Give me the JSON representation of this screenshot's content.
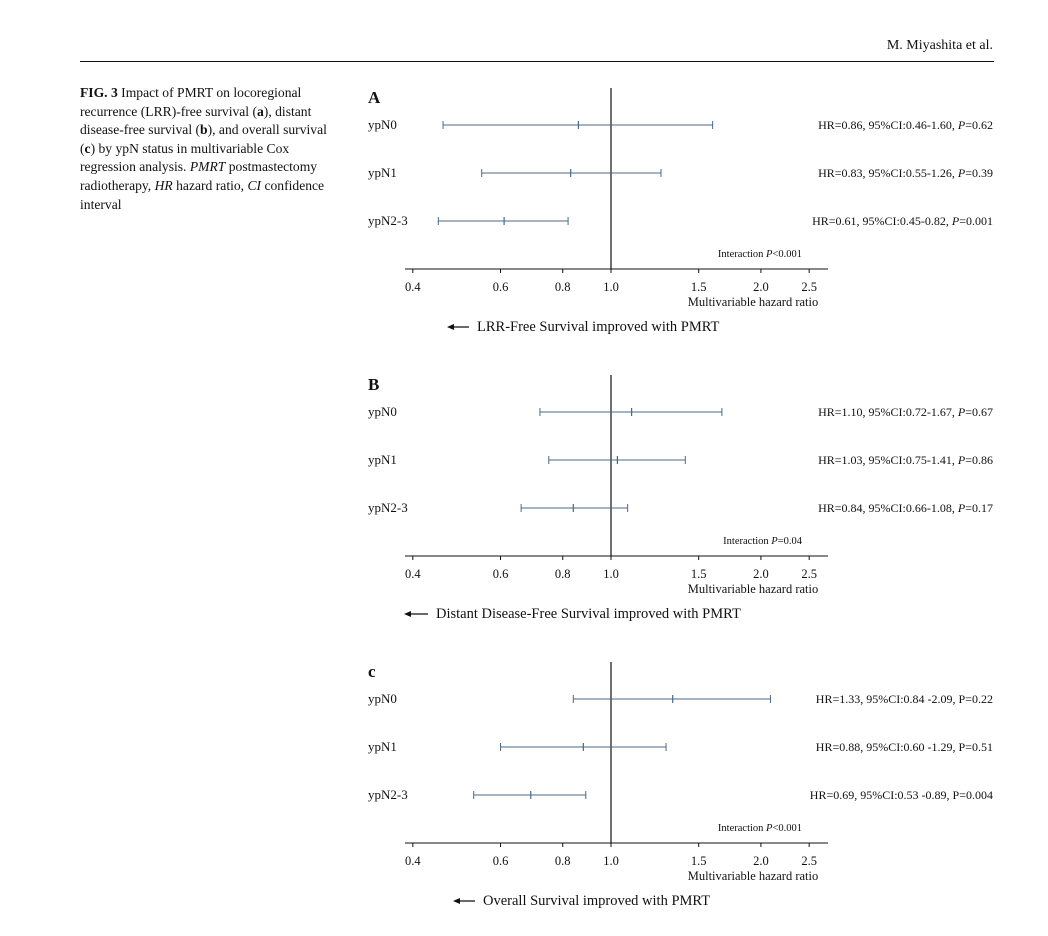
{
  "header": {
    "author": "M. Miyashita et al."
  },
  "caption": {
    "fig_label": "FIG. 3",
    "parts": [
      {
        "t": "Impact of PMRT on locoregional recurrence (LRR)-free survival ("
      },
      {
        "t": "a",
        "b": true
      },
      {
        "t": "), distant disease-free survival ("
      },
      {
        "t": "b",
        "b": true
      },
      {
        "t": "), and overall survival ("
      },
      {
        "t": "c",
        "b": true
      },
      {
        "t": ") by ypN status in multivariable Cox regression analysis. "
      },
      {
        "t": "PMRT",
        "i": true
      },
      {
        "t": " postmastectomy radiotherapy, "
      },
      {
        "t": "HR",
        "i": true
      },
      {
        "t": " hazard ratio, "
      },
      {
        "t": "CI",
        "i": true
      },
      {
        "t": " confidence interval"
      }
    ]
  },
  "chart_data": [
    {
      "type": "forest",
      "panel_label": "A",
      "x_scale": "log",
      "reference_line": 1.0,
      "xticks": [
        0.4,
        0.6,
        0.8,
        1.0,
        1.5,
        2.0,
        2.5
      ],
      "xtick_labels": [
        "0.4",
        "0.6",
        "0.8",
        "1.0",
        "1.5",
        "2.0",
        "2.5"
      ],
      "xlabel": "Multivariable hazard ratio",
      "rows": [
        {
          "label": "ypN0",
          "hr": 0.86,
          "lo": 0.46,
          "hi": 1.6,
          "stat": [
            {
              "t": "HR=0.86,  95%CI:0.46-1.60, "
            },
            {
              "t": "P",
              "i": true
            },
            {
              "t": "=0.62"
            }
          ]
        },
        {
          "label": "ypN1",
          "hr": 0.83,
          "lo": 0.55,
          "hi": 1.26,
          "stat": [
            {
              "t": "HR=0.83, 95%CI:0.55-1.26, "
            },
            {
              "t": "P",
              "i": true
            },
            {
              "t": "=0.39"
            }
          ]
        },
        {
          "label": "ypN2-3",
          "hr": 0.61,
          "lo": 0.45,
          "hi": 0.82,
          "stat": [
            {
              "t": "HR=0.61,  95%CI:0.45-0.82, "
            },
            {
              "t": "P",
              "i": true
            },
            {
              "t": "=0.001"
            }
          ]
        }
      ],
      "interaction": [
        {
          "t": "Interaction "
        },
        {
          "t": "P",
          "i": true
        },
        {
          "t": "<0.001"
        }
      ],
      "footer": "LRR-Free Survival improved with PMRT"
    },
    {
      "type": "forest",
      "panel_label": "B",
      "x_scale": "log",
      "reference_line": 1.0,
      "xticks": [
        0.4,
        0.6,
        0.8,
        1.0,
        1.5,
        2.0,
        2.5
      ],
      "xtick_labels": [
        "0.4",
        "0.6",
        "0.8",
        "1.0",
        "1.5",
        "2.0",
        "2.5"
      ],
      "xlabel": "Multivariable hazard ratio",
      "rows": [
        {
          "label": "ypN0",
          "hr": 1.1,
          "lo": 0.72,
          "hi": 1.67,
          "stat": [
            {
              "t": "HR=1.10,  95%CI:0.72-1.67, "
            },
            {
              "t": "P",
              "i": true
            },
            {
              "t": "=0.67"
            }
          ]
        },
        {
          "label": "ypN1",
          "hr": 1.03,
          "lo": 0.75,
          "hi": 1.41,
          "stat": [
            {
              "t": "HR=1.03, 95%CI:0.75-1.41, "
            },
            {
              "t": "P",
              "i": true
            },
            {
              "t": "=0.86"
            }
          ]
        },
        {
          "label": "ypN2-3",
          "hr": 0.84,
          "lo": 0.66,
          "hi": 1.08,
          "stat": [
            {
              "t": "HR=0.84, 95%CI:0.66-1.08, "
            },
            {
              "t": "P",
              "i": true
            },
            {
              "t": "=0.17"
            }
          ]
        }
      ],
      "interaction": [
        {
          "t": "Interaction "
        },
        {
          "t": "P",
          "i": true
        },
        {
          "t": "=0.04"
        }
      ],
      "footer": "Distant Disease-Free Survival improved with PMRT"
    },
    {
      "type": "forest",
      "panel_label": "c",
      "x_scale": "log",
      "reference_line": 1.0,
      "xticks": [
        0.4,
        0.6,
        0.8,
        1.0,
        1.5,
        2.0,
        2.5
      ],
      "xtick_labels": [
        "0.4",
        "0.6",
        "0.8",
        "1.0",
        "1.5",
        "2.0",
        "2.5"
      ],
      "xlabel": "Multivariable hazard ratio",
      "rows": [
        {
          "label": "ypN0",
          "hr": 1.33,
          "lo": 0.84,
          "hi": 2.09,
          "stat": [
            {
              "t": "HR=1.33,  95%CI:0.84 -2.09, P=0.22"
            }
          ]
        },
        {
          "label": "ypN1",
          "hr": 0.88,
          "lo": 0.6,
          "hi": 1.29,
          "stat": [
            {
              "t": "HR=0.88, 95%CI:0.60 -1.29, P=0.51"
            }
          ]
        },
        {
          "label": "ypN2-3",
          "hr": 0.69,
          "lo": 0.53,
          "hi": 0.89,
          "stat": [
            {
              "t": "HR=0.69,  95%CI:0.53 -0.89, P=0.004"
            }
          ]
        }
      ],
      "interaction": [
        {
          "t": "Interaction "
        },
        {
          "t": "P",
          "i": true
        },
        {
          "t": "<0.001"
        }
      ],
      "footer": "Overall Survival improved with PMRT"
    }
  ],
  "colors": {
    "ci_line": "#4a6a8a",
    "axis": "#111111"
  }
}
